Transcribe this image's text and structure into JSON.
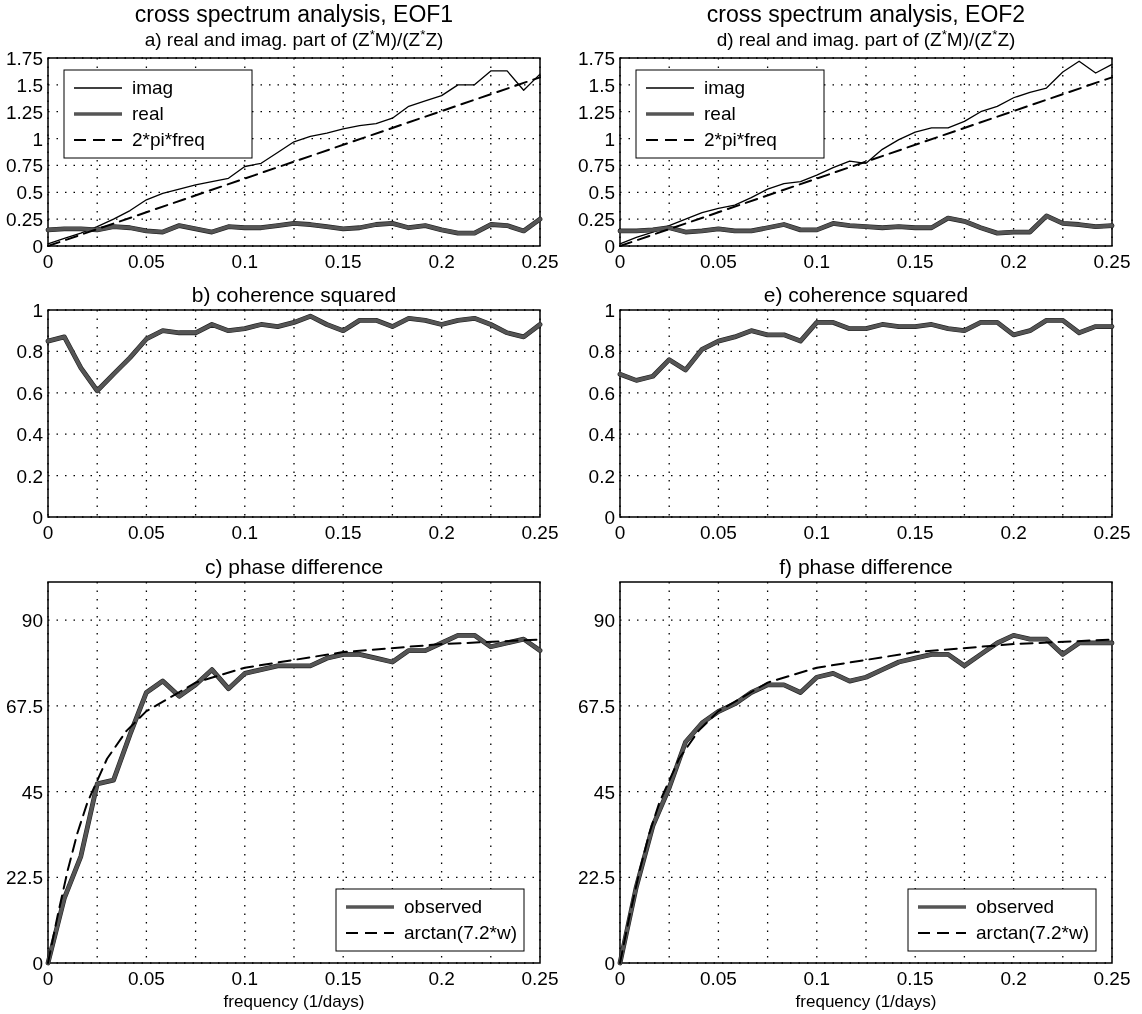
{
  "chart_data": [
    {
      "type": "line",
      "title": "cross spectrum analysis, EOF1",
      "subtitle": "a) real and imag. part of (Z$^{*}$M)/(Z$^{*}$Z)",
      "x": [
        0,
        0.0083,
        0.0167,
        0.025,
        0.0333,
        0.0417,
        0.05,
        0.0583,
        0.0667,
        0.075,
        0.0833,
        0.0917,
        0.1,
        0.1083,
        0.1167,
        0.125,
        0.1333,
        0.1417,
        0.15,
        0.1583,
        0.1667,
        0.175,
        0.1833,
        0.1917,
        0.2,
        0.2083,
        0.2167,
        0.225,
        0.2333,
        0.2417,
        0.25
      ],
      "series": [
        {
          "name": "imag",
          "color": "#000000",
          "values": [
            0.02,
            0.07,
            0.12,
            0.18,
            0.25,
            0.33,
            0.43,
            0.49,
            0.53,
            0.57,
            0.6,
            0.63,
            0.74,
            0.77,
            0.87,
            0.97,
            1.02,
            1.05,
            1.09,
            1.12,
            1.14,
            1.19,
            1.3,
            1.35,
            1.4,
            1.5,
            1.5,
            1.63,
            1.63,
            1.45,
            1.6
          ]
        },
        {
          "name": "real",
          "color": "#555555",
          "values": [
            0.15,
            0.16,
            0.16,
            0.15,
            0.18,
            0.17,
            0.14,
            0.13,
            0.19,
            0.16,
            0.13,
            0.18,
            0.17,
            0.17,
            0.19,
            0.21,
            0.2,
            0.18,
            0.16,
            0.17,
            0.2,
            0.21,
            0.17,
            0.19,
            0.15,
            0.12,
            0.12,
            0.2,
            0.19,
            0.14,
            0.25
          ]
        },
        {
          "name": "2*pi*freq",
          "color": "#000000",
          "line_style": "dashed",
          "x": [
            0,
            0.25
          ],
          "values": [
            0,
            1.57
          ]
        }
      ],
      "xlim": [
        0,
        0.25
      ],
      "ylim": [
        0,
        1.75
      ],
      "xticks": [
        0,
        {
          "value": 0.025,
          "label": null
        },
        0.05,
        {
          "value": 0.075,
          "label": null
        },
        0.1,
        {
          "value": 0.125,
          "label": null
        },
        0.15,
        {
          "value": 0.175,
          "label": null
        },
        0.2,
        {
          "value": 0.225,
          "label": null
        },
        0.25
      ],
      "yticks": [
        0,
        0.25,
        0.5,
        0.75,
        1,
        1.25,
        1.5,
        1.75
      ],
      "grid": true,
      "legend": "top left",
      "marker": "none"
    },
    {
      "type": "line",
      "title": "cross spectrum analysis, EOF2",
      "subtitle": "d) real and imag. part of (Z$^{*}$M)/(Z$^{*}$Z)",
      "x": [
        0,
        0.0083,
        0.0167,
        0.025,
        0.0333,
        0.0417,
        0.05,
        0.0583,
        0.0667,
        0.075,
        0.0833,
        0.0917,
        0.1,
        0.1083,
        0.1167,
        0.125,
        0.1333,
        0.1417,
        0.15,
        0.1583,
        0.1667,
        0.175,
        0.1833,
        0.1917,
        0.2,
        0.2083,
        0.2167,
        0.225,
        0.2333,
        0.2417,
        0.25
      ],
      "series": [
        {
          "name": "imag",
          "color": "#000000",
          "values": [
            0.02,
            0.08,
            0.13,
            0.19,
            0.25,
            0.31,
            0.35,
            0.38,
            0.45,
            0.53,
            0.58,
            0.6,
            0.66,
            0.73,
            0.79,
            0.77,
            0.9,
            0.99,
            1.06,
            1.1,
            1.1,
            1.16,
            1.25,
            1.3,
            1.38,
            1.43,
            1.47,
            1.62,
            1.72,
            1.61,
            1.69
          ]
        },
        {
          "name": "real",
          "color": "#555555",
          "values": [
            0.14,
            0.14,
            0.15,
            0.17,
            0.13,
            0.14,
            0.16,
            0.14,
            0.14,
            0.17,
            0.2,
            0.15,
            0.15,
            0.21,
            0.19,
            0.18,
            0.17,
            0.18,
            0.17,
            0.17,
            0.26,
            0.23,
            0.17,
            0.12,
            0.13,
            0.13,
            0.28,
            0.21,
            0.2,
            0.18,
            0.19
          ]
        },
        {
          "name": "2*pi*freq",
          "color": "#000000",
          "line_style": "dashed",
          "x": [
            0,
            0.25
          ],
          "values": [
            0,
            1.57
          ]
        }
      ],
      "xlim": [
        0,
        0.25
      ],
      "ylim": [
        0,
        1.75
      ],
      "xticks": [
        0,
        {
          "value": 0.025,
          "label": null
        },
        0.05,
        {
          "value": 0.075,
          "label": null
        },
        0.1,
        {
          "value": 0.125,
          "label": null
        },
        0.15,
        {
          "value": 0.175,
          "label": null
        },
        0.2,
        {
          "value": 0.225,
          "label": null
        },
        0.25
      ],
      "yticks": [
        0,
        0.25,
        0.5,
        0.75,
        1,
        1.25,
        1.5,
        1.75
      ],
      "grid": true,
      "legend": "top left",
      "marker": "none"
    },
    {
      "type": "line",
      "title": "b) coherence squared",
      "x": [
        0,
        0.0083,
        0.0167,
        0.025,
        0.0333,
        0.0417,
        0.05,
        0.0583,
        0.0667,
        0.075,
        0.0833,
        0.0917,
        0.1,
        0.1083,
        0.1167,
        0.125,
        0.1333,
        0.1417,
        0.15,
        0.1583,
        0.1667,
        0.175,
        0.1833,
        0.1917,
        0.2,
        0.2083,
        0.2167,
        0.225,
        0.2333,
        0.2417,
        0.25
      ],
      "series": [
        {
          "color": "#555555",
          "values": [
            0.85,
            0.87,
            0.72,
            0.61,
            0.69,
            0.77,
            0.86,
            0.9,
            0.89,
            0.89,
            0.93,
            0.9,
            0.91,
            0.93,
            0.92,
            0.94,
            0.97,
            0.93,
            0.9,
            0.95,
            0.95,
            0.92,
            0.96,
            0.95,
            0.93,
            0.95,
            0.96,
            0.93,
            0.89,
            0.87,
            0.93
          ]
        }
      ],
      "xlim": [
        0,
        0.25
      ],
      "ylim": [
        0,
        1
      ],
      "xticks": [
        0,
        {
          "value": 0.025,
          "label": null
        },
        0.05,
        {
          "value": 0.075,
          "label": null
        },
        0.1,
        {
          "value": 0.125,
          "label": null
        },
        0.15,
        {
          "value": 0.175,
          "label": null
        },
        0.2,
        {
          "value": 0.225,
          "label": null
        },
        0.25
      ],
      "yticks": [
        0,
        0.2,
        0.4,
        0.6,
        0.8,
        1
      ],
      "grid": true,
      "marker": "none"
    },
    {
      "type": "line",
      "title": "e) coherence squared",
      "x": [
        0,
        0.0083,
        0.0167,
        0.025,
        0.0333,
        0.0417,
        0.05,
        0.0583,
        0.0667,
        0.075,
        0.0833,
        0.0917,
        0.1,
        0.1083,
        0.1167,
        0.125,
        0.1333,
        0.1417,
        0.15,
        0.1583,
        0.1667,
        0.175,
        0.1833,
        0.1917,
        0.2,
        0.2083,
        0.2167,
        0.225,
        0.2333,
        0.2417,
        0.25
      ],
      "series": [
        {
          "color": "#555555",
          "values": [
            0.69,
            0.66,
            0.68,
            0.76,
            0.71,
            0.81,
            0.85,
            0.87,
            0.9,
            0.88,
            0.88,
            0.85,
            0.94,
            0.94,
            0.91,
            0.91,
            0.93,
            0.92,
            0.92,
            0.93,
            0.91,
            0.9,
            0.94,
            0.94,
            0.88,
            0.9,
            0.95,
            0.95,
            0.89,
            0.92,
            0.92
          ]
        }
      ],
      "xlim": [
        0,
        0.25
      ],
      "ylim": [
        0,
        1
      ],
      "xticks": [
        0,
        {
          "value": 0.025,
          "label": null
        },
        0.05,
        {
          "value": 0.075,
          "label": null
        },
        0.1,
        {
          "value": 0.125,
          "label": null
        },
        0.15,
        {
          "value": 0.175,
          "label": null
        },
        0.2,
        {
          "value": 0.225,
          "label": null
        },
        0.25
      ],
      "yticks": [
        0,
        0.2,
        0.4,
        0.6,
        0.8,
        1
      ],
      "grid": true,
      "marker": "none"
    },
    {
      "type": "line",
      "title": "c) phase difference",
      "xlabel": "frequency (1/days)",
      "x": [
        0,
        0.0083,
        0.0167,
        0.025,
        0.0333,
        0.0417,
        0.05,
        0.0583,
        0.0667,
        0.075,
        0.0833,
        0.0917,
        0.1,
        0.1083,
        0.1167,
        0.125,
        0.1333,
        0.1417,
        0.15,
        0.1583,
        0.1667,
        0.175,
        0.1833,
        0.1917,
        0.2,
        0.2083,
        0.2167,
        0.225,
        0.2333,
        0.2417,
        0.25
      ],
      "series": [
        {
          "name": "observed",
          "color": "#555555",
          "values": [
            0,
            17,
            28,
            47,
            48,
            60,
            71,
            74,
            70,
            73,
            77,
            72,
            76,
            77,
            78,
            78,
            78,
            80,
            81,
            81,
            80,
            79,
            82,
            82,
            84,
            86,
            86,
            83,
            84,
            85,
            82
          ]
        },
        {
          "name": "arctan(7.2*w)",
          "color": "#000000",
          "line_style": "dashed",
          "x": [
            0,
            0.005,
            0.01,
            0.015,
            0.02,
            0.03,
            0.04,
            0.05,
            0.075,
            0.1,
            0.15,
            0.2,
            0.25
          ],
          "values": [
            0,
            12.7,
            24.3,
            34.2,
            42.1,
            53.6,
            61,
            66.1,
            73.6,
            77.5,
            81.6,
            83.7,
            84.9
          ]
        }
      ],
      "xlim": [
        0,
        0.25
      ],
      "ylim": [
        0,
        100
      ],
      "xticks": [
        0,
        {
          "value": 0.025,
          "label": null
        },
        0.05,
        {
          "value": 0.075,
          "label": null
        },
        0.1,
        {
          "value": 0.125,
          "label": null
        },
        0.15,
        {
          "value": 0.175,
          "label": null
        },
        0.2,
        {
          "value": 0.225,
          "label": null
        },
        0.25
      ],
      "yticks": [
        0,
        22.5,
        45,
        67.5,
        90
      ],
      "grid": true,
      "legend": "bottom right",
      "marker": "none"
    },
    {
      "type": "line",
      "title": "f) phase difference",
      "xlabel": "frequency (1/days)",
      "x": [
        0,
        0.0083,
        0.0167,
        0.025,
        0.0333,
        0.0417,
        0.05,
        0.0583,
        0.0667,
        0.075,
        0.0833,
        0.0917,
        0.1,
        0.1083,
        0.1167,
        0.125,
        0.1333,
        0.1417,
        0.15,
        0.1583,
        0.1667,
        0.175,
        0.1833,
        0.1917,
        0.2,
        0.2083,
        0.2167,
        0.225,
        0.2333,
        0.2417,
        0.25
      ],
      "series": [
        {
          "name": "observed",
          "color": "#555555",
          "values": [
            0,
            20,
            36,
            46,
            58,
            63,
            66,
            68,
            71,
            73,
            73,
            71,
            75,
            76,
            74,
            75,
            77,
            79,
            80,
            81,
            81,
            78,
            81,
            84,
            86,
            85,
            85,
            81,
            84,
            84,
            84
          ]
        },
        {
          "name": "arctan(7.2*w)",
          "color": "#000000",
          "line_style": "dashed",
          "x": [
            0,
            0.005,
            0.01,
            0.015,
            0.02,
            0.03,
            0.04,
            0.05,
            0.075,
            0.1,
            0.15,
            0.2,
            0.25
          ],
          "values": [
            0,
            12.7,
            24.3,
            34.2,
            42.1,
            53.6,
            61,
            66.1,
            73.6,
            77.5,
            81.6,
            83.7,
            84.9
          ]
        }
      ],
      "xlim": [
        0,
        0.25
      ],
      "ylim": [
        0,
        100
      ],
      "xticks": [
        0,
        {
          "value": 0.025,
          "label": null
        },
        0.05,
        {
          "value": 0.075,
          "label": null
        },
        0.1,
        {
          "value": 0.125,
          "label": null
        },
        0.15,
        {
          "value": 0.175,
          "label": null
        },
        0.2,
        {
          "value": 0.225,
          "label": null
        },
        0.25
      ],
      "yticks": [
        0,
        22.5,
        45,
        67.5,
        90
      ],
      "grid": true,
      "legend": "bottom right",
      "marker": "none"
    }
  ]
}
